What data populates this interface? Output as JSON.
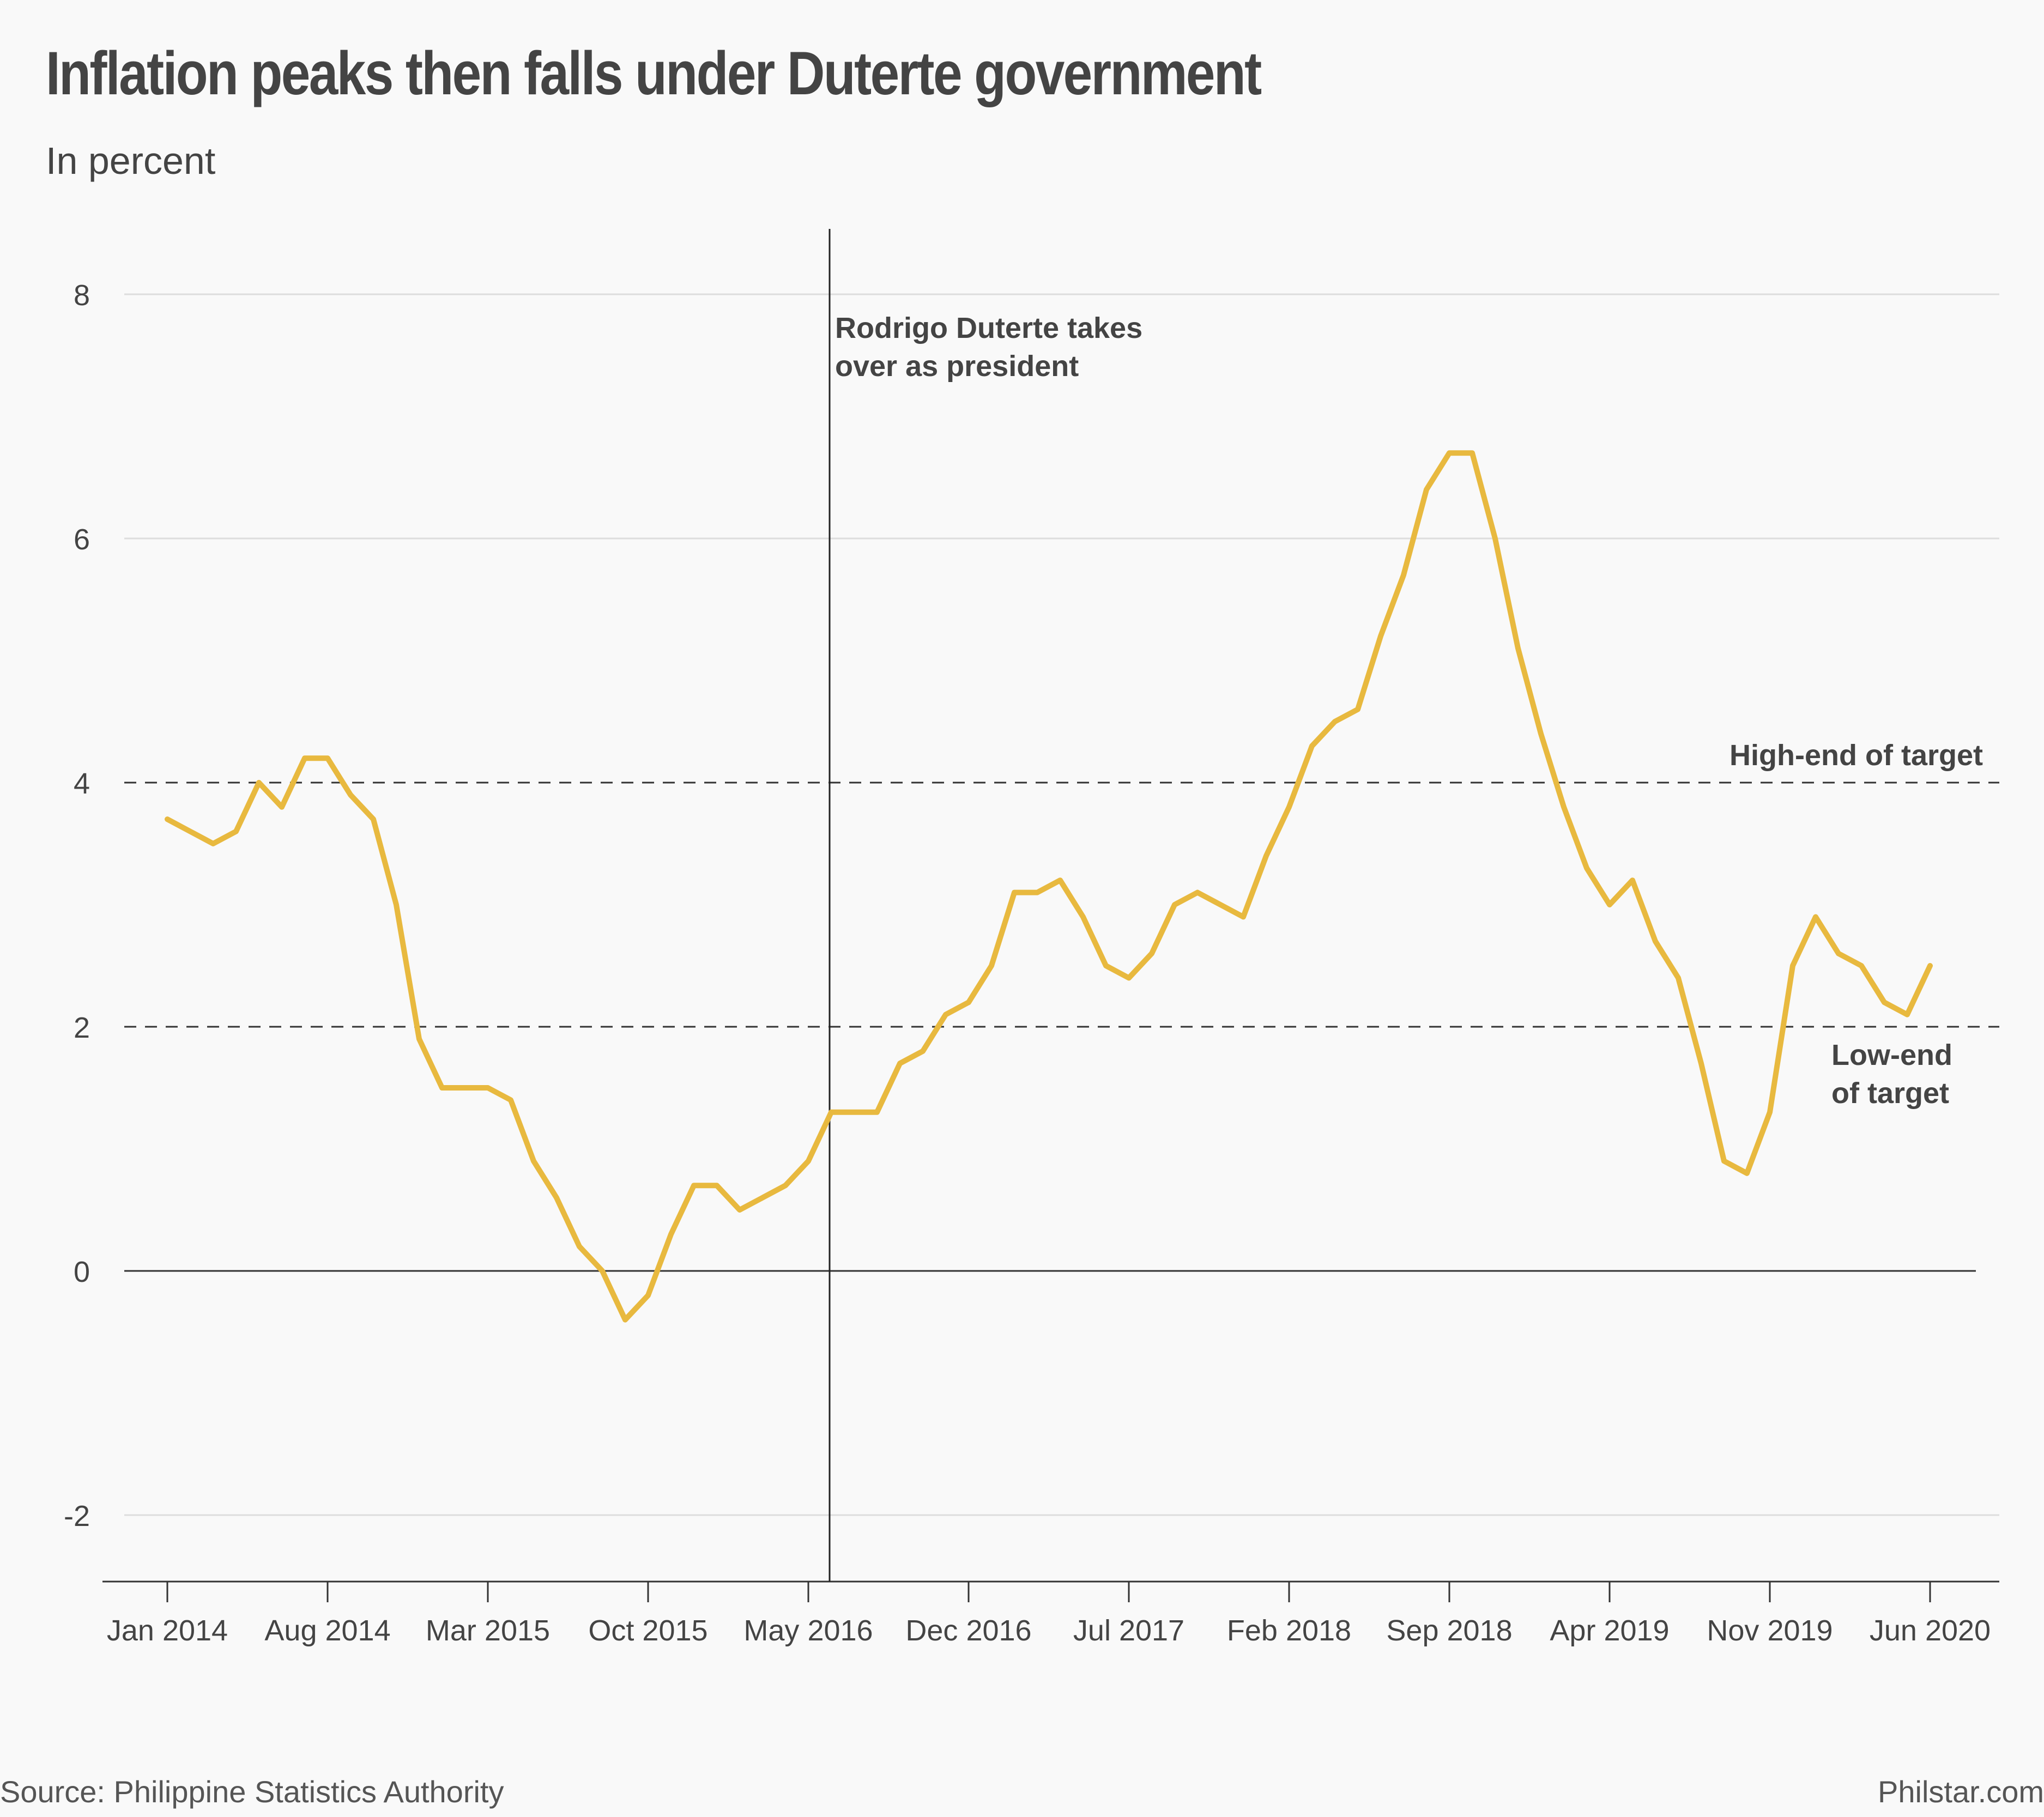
{
  "header": {
    "title": "Inflation peaks then falls under Duterte government",
    "subtitle": "In percent"
  },
  "footer": {
    "source": "Source: Philippine Statistics Authority",
    "credit": "Philstar.com"
  },
  "colors": {
    "line": "#e8b93f",
    "axis": "#333333",
    "grid": "#dddddd",
    "background": "#f9f9f9"
  },
  "chart_data": {
    "type": "line",
    "title": "Inflation peaks then falls under Duterte government",
    "subtitle": "In percent",
    "xlabel": "",
    "ylabel": "",
    "ylim": [
      -2.5,
      8.5
    ],
    "yticks": [
      -2,
      0,
      2,
      4,
      6,
      8
    ],
    "grid": true,
    "x_start": "Jan 2014",
    "x_end": "Jun 2020",
    "xtick_labels": [
      "Jan 2014",
      "Aug 2014",
      "Mar 2015",
      "Oct 2015",
      "May 2016",
      "Dec 2016",
      "Jul 2017",
      "Feb 2018",
      "Sep 2018",
      "Apr 2019",
      "Nov 2019",
      "Jun 2020"
    ],
    "series": [
      {
        "values": [
          3.7,
          3.6,
          3.5,
          3.6,
          4.0,
          3.8,
          4.2,
          4.2,
          3.9,
          3.7,
          3.0,
          1.9,
          1.5,
          1.5,
          1.5,
          1.4,
          0.9,
          0.6,
          0.2,
          0.0,
          -0.4,
          -0.2,
          0.3,
          0.7,
          0.7,
          0.5,
          0.6,
          0.7,
          0.9,
          1.3,
          1.3,
          1.3,
          1.7,
          1.8,
          2.1,
          2.2,
          2.5,
          3.1,
          3.1,
          3.2,
          2.9,
          2.5,
          2.4,
          2.6,
          3.0,
          3.1,
          3.0,
          2.9,
          3.4,
          3.8,
          4.3,
          4.5,
          4.6,
          5.2,
          5.7,
          6.4,
          6.7,
          6.7,
          6.0,
          5.1,
          4.4,
          3.8,
          3.3,
          3.0,
          3.2,
          2.7,
          2.4,
          1.7,
          0.9,
          0.8,
          1.3,
          2.5,
          2.9,
          2.6,
          2.5,
          2.2,
          2.1,
          2.5
        ]
      }
    ],
    "reference_lines": [
      {
        "value": 4,
        "label": "High-end of target",
        "style": "dashed"
      },
      {
        "value": 2,
        "label_lines": [
          "Low-end",
          "of target"
        ],
        "style": "dashed"
      }
    ],
    "annotation": {
      "x": "Jun 2016",
      "lines": [
        "Rodrigo Duterte takes",
        "over as president"
      ]
    }
  }
}
